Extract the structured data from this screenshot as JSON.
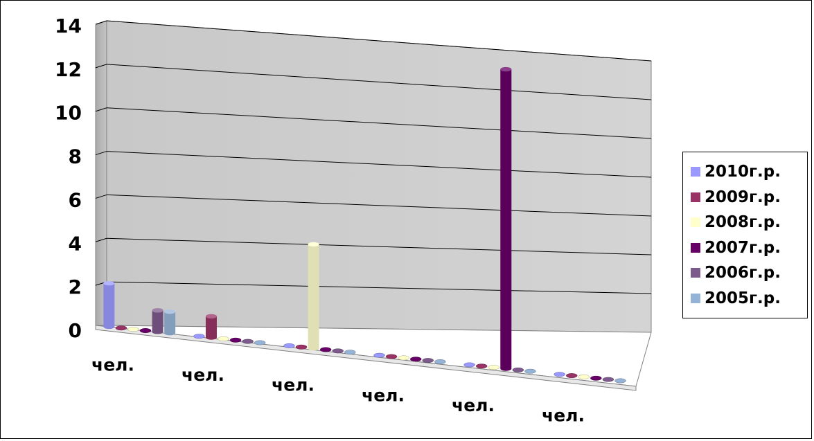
{
  "chart_data": {
    "type": "bar",
    "categories": [
      "чел.",
      "чел.",
      "чел.",
      "чел.",
      "чел.",
      "чел."
    ],
    "series": [
      {
        "name": "2010г.р.",
        "color": "#9999ff",
        "values": [
          2,
          0,
          0,
          0,
          0,
          0
        ]
      },
      {
        "name": "2009г.р.",
        "color": "#993366",
        "values": [
          0,
          1,
          0,
          0,
          0,
          0
        ]
      },
      {
        "name": "2008г.р.",
        "color": "#ffffcc",
        "values": [
          0,
          0,
          5,
          0,
          0,
          0
        ]
      },
      {
        "name": "2007г.р.",
        "color": "#660066",
        "values": [
          0,
          0,
          0,
          0,
          15,
          0
        ]
      },
      {
        "name": "2006г.р.",
        "color": "#7d5a8c",
        "values": [
          1,
          0,
          0,
          0,
          0,
          0
        ]
      },
      {
        "name": "2005г.р.",
        "color": "#95b3d7",
        "values": [
          1,
          0,
          0,
          0,
          0,
          0
        ]
      }
    ],
    "y_ticks": [
      "0",
      "2",
      "4",
      "6",
      "8",
      "10",
      "12",
      "14"
    ],
    "ylim": [
      0,
      14
    ],
    "grid": true,
    "legend_position": "right",
    "style": "3d-cylinder"
  }
}
